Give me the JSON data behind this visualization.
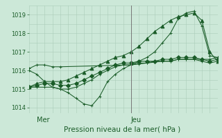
{
  "title": "Pression niveau de la mer( hPa )",
  "background_color": "#cce8d8",
  "grid_color": "#aaccb8",
  "line_color": "#1a5c28",
  "ylim": [
    1013.7,
    1019.5
  ],
  "yticks": [
    1014,
    1015,
    1016,
    1017,
    1018,
    1019
  ],
  "xlim": [
    0,
    48
  ],
  "mer_x": 2,
  "jeu_x": 26,
  "vline_x": 26,
  "day_labels": [
    [
      "Mer",
      2
    ],
    [
      "Jeu",
      26
    ]
  ],
  "lines": [
    {
      "x": [
        0,
        2,
        4,
        6,
        8,
        10,
        12,
        14,
        16,
        18,
        20,
        22,
        24,
        26,
        28,
        30,
        32,
        34,
        36,
        38,
        40,
        42,
        44,
        46,
        48
      ],
      "y": [
        1016.0,
        1015.8,
        1015.4,
        1015.1,
        1015.0,
        1014.8,
        1014.5,
        1014.2,
        1014.1,
        1014.6,
        1015.4,
        1015.8,
        1016.1,
        1016.3,
        1016.5,
        1016.7,
        1017.0,
        1017.5,
        1018.0,
        1018.8,
        1019.1,
        1019.2,
        1018.4,
        1016.8,
        1016.7
      ],
      "marker": "+"
    },
    {
      "x": [
        0,
        2,
        4,
        6,
        8,
        10,
        12,
        14,
        16,
        18,
        20,
        22,
        24,
        26,
        28,
        30,
        32,
        34,
        36,
        38,
        40,
        42,
        44,
        46,
        48
      ],
      "y": [
        1015.1,
        1015.1,
        1015.1,
        1015.1,
        1015.0,
        1015.0,
        1015.1,
        1015.3,
        1015.5,
        1015.8,
        1016.0,
        1016.2,
        1016.3,
        1016.3,
        1016.4,
        1016.4,
        1016.5,
        1016.5,
        1016.5,
        1016.6,
        1016.6,
        1016.6,
        1016.5,
        1016.4,
        1016.5
      ],
      "marker": "+"
    },
    {
      "x": [
        0,
        2,
        4,
        6,
        8,
        10,
        12,
        14,
        16,
        18,
        20,
        22,
        24,
        26,
        28,
        30,
        32,
        34,
        36,
        38,
        40,
        42,
        44,
        46,
        48
      ],
      "y": [
        1015.1,
        1015.3,
        1015.4,
        1015.4,
        1015.4,
        1015.5,
        1015.7,
        1015.9,
        1016.1,
        1016.3,
        1016.5,
        1016.7,
        1016.8,
        1017.0,
        1017.3,
        1017.7,
        1018.1,
        1018.4,
        1018.7,
        1018.9,
        1019.0,
        1019.1,
        1018.7,
        1017.0,
        1016.5
      ],
      "marker": "^"
    },
    {
      "x": [
        0,
        2,
        4,
        6,
        8,
        10,
        12,
        14,
        16,
        18,
        20,
        22,
        24,
        26,
        28,
        30,
        32,
        34,
        36,
        38,
        40,
        42,
        44,
        46,
        48
      ],
      "y": [
        1015.1,
        1015.2,
        1015.3,
        1015.3,
        1015.2,
        1015.2,
        1015.3,
        1015.5,
        1015.7,
        1015.9,
        1016.1,
        1016.3,
        1016.4,
        1016.4,
        1016.5,
        1016.5,
        1016.5,
        1016.6,
        1016.6,
        1016.7,
        1016.7,
        1016.7,
        1016.6,
        1016.5,
        1016.6
      ],
      "marker": "D"
    },
    {
      "x": [
        0,
        2,
        4,
        6,
        8,
        26,
        28,
        30,
        32,
        34,
        36,
        38,
        40,
        42,
        44,
        46,
        48
      ],
      "y": [
        1016.1,
        1016.3,
        1016.3,
        1016.2,
        1016.2,
        1016.3,
        1016.35,
        1016.4,
        1016.45,
        1016.5,
        1016.5,
        1016.6,
        1016.6,
        1016.6,
        1016.6,
        1016.6,
        1016.7
      ],
      "marker": "+"
    }
  ]
}
